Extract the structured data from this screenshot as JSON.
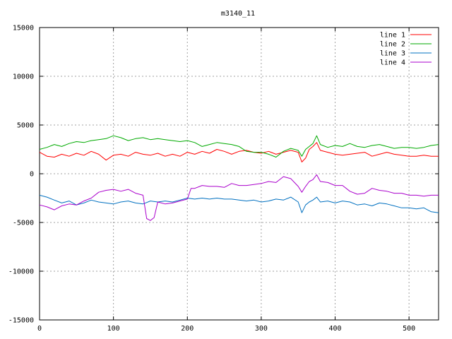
{
  "chart_data": {
    "type": "line",
    "title": "m3140_11",
    "xlabel": "",
    "ylabel": "",
    "xlim": [
      0,
      540
    ],
    "ylim": [
      -15000,
      15000
    ],
    "xticks": [
      0,
      100,
      200,
      300,
      400,
      500
    ],
    "yticks": [
      -15000,
      -10000,
      -5000,
      0,
      5000,
      10000,
      15000
    ],
    "grid": true,
    "legend_position": "top-right",
    "series": [
      {
        "name": "line 1",
        "color": "#ff0000",
        "x": [
          0,
          10,
          20,
          30,
          40,
          50,
          60,
          70,
          80,
          90,
          100,
          110,
          120,
          130,
          140,
          150,
          160,
          170,
          180,
          190,
          200,
          210,
          220,
          230,
          240,
          250,
          260,
          270,
          280,
          290,
          300,
          310,
          320,
          330,
          340,
          350,
          355,
          360,
          365,
          370,
          375,
          380,
          390,
          400,
          410,
          420,
          430,
          440,
          450,
          460,
          470,
          480,
          490,
          500,
          510,
          520,
          530,
          540
        ],
        "y": [
          2200,
          1800,
          1700,
          2000,
          1800,
          2100,
          1900,
          2300,
          2000,
          1400,
          1900,
          2000,
          1800,
          2200,
          2000,
          1900,
          2100,
          1800,
          2000,
          1800,
          2200,
          2000,
          2300,
          2100,
          2500,
          2300,
          2000,
          2300,
          2400,
          2200,
          2100,
          2300,
          2000,
          2200,
          2400,
          2200,
          1200,
          1600,
          2500,
          2800,
          3200,
          2400,
          2200,
          2000,
          1900,
          2000,
          2100,
          2200,
          1800,
          2000,
          2200,
          2000,
          1900,
          1800,
          1800,
          1900,
          1800,
          1800
        ]
      },
      {
        "name": "line 2",
        "color": "#00aa00",
        "x": [
          0,
          10,
          20,
          30,
          40,
          50,
          60,
          70,
          80,
          90,
          100,
          110,
          120,
          130,
          140,
          150,
          160,
          170,
          180,
          190,
          200,
          210,
          220,
          230,
          240,
          250,
          260,
          270,
          280,
          290,
          300,
          310,
          320,
          330,
          340,
          350,
          355,
          360,
          365,
          370,
          375,
          380,
          390,
          400,
          410,
          420,
          430,
          440,
          450,
          460,
          470,
          480,
          490,
          500,
          510,
          520,
          530,
          540
        ],
        "y": [
          2500,
          2700,
          3000,
          2800,
          3100,
          3300,
          3200,
          3400,
          3500,
          3600,
          3900,
          3700,
          3400,
          3600,
          3700,
          3500,
          3600,
          3500,
          3400,
          3300,
          3400,
          3200,
          2800,
          3000,
          3200,
          3100,
          3000,
          2800,
          2300,
          2200,
          2200,
          2000,
          1700,
          2300,
          2600,
          2400,
          1800,
          2500,
          2800,
          3100,
          3900,
          3000,
          2700,
          2900,
          2800,
          3100,
          2800,
          2700,
          2900,
          3000,
          2800,
          2600,
          2700,
          2700,
          2600,
          2700,
          2900,
          3000
        ]
      },
      {
        "name": "line 3",
        "color": "#0070c0",
        "x": [
          0,
          10,
          20,
          30,
          40,
          50,
          60,
          70,
          80,
          90,
          100,
          110,
          120,
          130,
          140,
          150,
          160,
          170,
          180,
          190,
          200,
          210,
          220,
          230,
          240,
          250,
          260,
          270,
          280,
          290,
          300,
          310,
          320,
          330,
          340,
          350,
          355,
          360,
          365,
          370,
          375,
          380,
          390,
          400,
          410,
          420,
          430,
          440,
          450,
          460,
          470,
          480,
          490,
          500,
          510,
          520,
          530,
          540
        ],
        "y": [
          -2200,
          -2400,
          -2700,
          -3000,
          -2800,
          -3200,
          -3000,
          -2700,
          -2900,
          -3000,
          -3100,
          -2900,
          -2800,
          -3000,
          -3100,
          -2800,
          -2900,
          -2800,
          -2900,
          -2700,
          -2500,
          -2600,
          -2500,
          -2600,
          -2500,
          -2600,
          -2600,
          -2700,
          -2800,
          -2700,
          -2900,
          -2800,
          -2600,
          -2700,
          -2400,
          -2900,
          -4000,
          -3200,
          -2900,
          -2700,
          -2400,
          -2900,
          -2800,
          -3000,
          -2800,
          -2900,
          -3200,
          -3100,
          -3300,
          -3000,
          -3100,
          -3300,
          -3500,
          -3500,
          -3600,
          -3500,
          -3900,
          -4000
        ]
      },
      {
        "name": "line 4",
        "color": "#aa00cc",
        "x": [
          0,
          10,
          20,
          30,
          40,
          50,
          60,
          70,
          80,
          90,
          100,
          110,
          120,
          130,
          140,
          145,
          150,
          155,
          160,
          170,
          180,
          190,
          200,
          205,
          210,
          220,
          230,
          240,
          250,
          260,
          270,
          280,
          290,
          300,
          310,
          320,
          330,
          340,
          350,
          355,
          360,
          365,
          370,
          375,
          380,
          390,
          400,
          410,
          420,
          430,
          440,
          450,
          460,
          470,
          480,
          490,
          500,
          510,
          520,
          530,
          540
        ],
        "y": [
          -3200,
          -3400,
          -3700,
          -3300,
          -3100,
          -3200,
          -2800,
          -2500,
          -1900,
          -1700,
          -1600,
          -1800,
          -1600,
          -2000,
          -2200,
          -4600,
          -4800,
          -4500,
          -2900,
          -3100,
          -3000,
          -2800,
          -2600,
          -1500,
          -1500,
          -1200,
          -1300,
          -1300,
          -1400,
          -1000,
          -1200,
          -1200,
          -1100,
          -1000,
          -800,
          -900,
          -300,
          -500,
          -1300,
          -1900,
          -1300,
          -800,
          -600,
          -100,
          -800,
          -900,
          -1200,
          -1200,
          -1800,
          -2100,
          -2000,
          -1500,
          -1700,
          -1800,
          -2000,
          -2000,
          -2200,
          -2200,
          -2300,
          -2200,
          -2200
        ]
      }
    ]
  }
}
